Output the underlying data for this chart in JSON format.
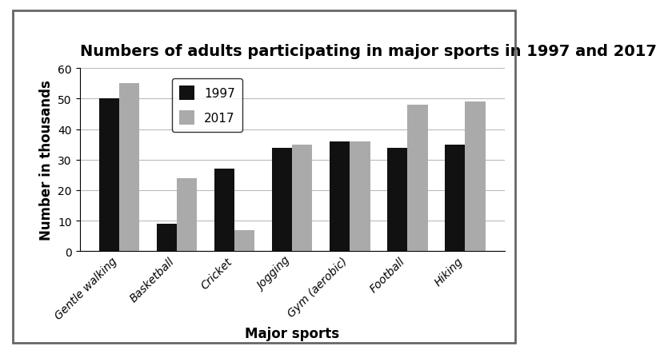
{
  "title": "Numbers of adults participating in major sports in 1997 and 2017",
  "xlabel": "Major sports",
  "ylabel": "Number in thousands",
  "categories": [
    "Gentle walking",
    "Basketball",
    "Cricket",
    "Jogging",
    "Gym (aerobic)",
    "Football",
    "Hiking"
  ],
  "values_1997": [
    50,
    9,
    27,
    34,
    36,
    34,
    35
  ],
  "values_2017": [
    55,
    24,
    7,
    35,
    36,
    48,
    49
  ],
  "color_1997": "#111111",
  "color_2017": "#aaaaaa",
  "ylim": [
    0,
    60
  ],
  "yticks": [
    0,
    10,
    20,
    30,
    40,
    50,
    60
  ],
  "legend_labels": [
    "1997",
    "2017"
  ],
  "bar_width": 0.35,
  "title_fontsize": 14,
  "axis_label_fontsize": 12,
  "tick_fontsize": 10,
  "legend_fontsize": 11,
  "background_color": "#ffffff",
  "grid_color": "#bbbbbb",
  "border_color": "#888888"
}
